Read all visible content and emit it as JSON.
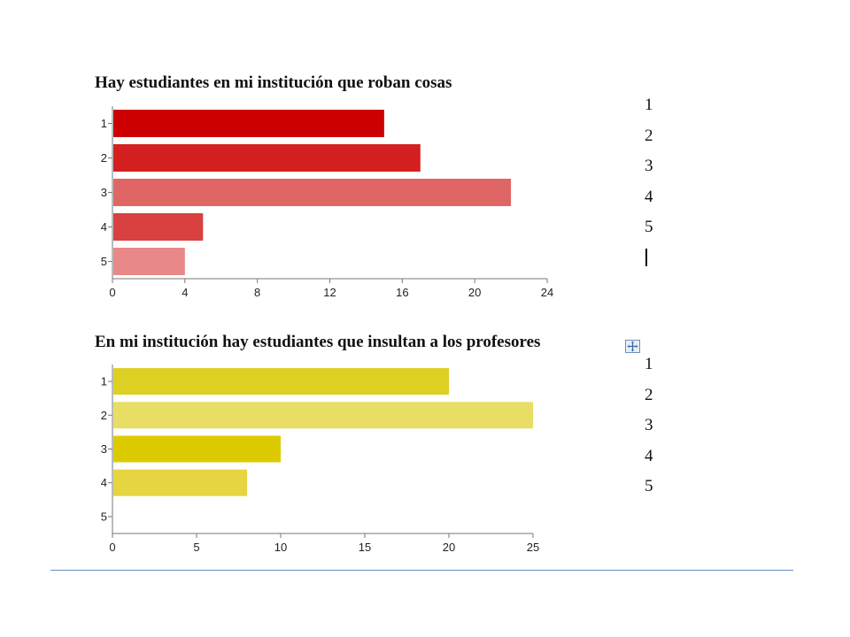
{
  "chart_data": [
    {
      "type": "bar",
      "orientation": "horizontal",
      "title": "Hay estudiantes en mi institución que roban cosas",
      "categories": [
        "1",
        "2",
        "3",
        "4",
        "5"
      ],
      "values": [
        15,
        17,
        22,
        5,
        4
      ],
      "colors": [
        "#cc0000",
        "#d42020",
        "#e06666",
        "#d94040",
        "#e88888"
      ],
      "xlim": [
        0,
        24
      ],
      "xticks": [
        0,
        4,
        8,
        12,
        16,
        20,
        24
      ],
      "grid": false,
      "legend_items": [
        "1",
        "2",
        "3",
        "4",
        "5"
      ]
    },
    {
      "type": "bar",
      "orientation": "horizontal",
      "title": "En mi institución hay estudiantes que insultan a los profesores",
      "categories": [
        "1",
        "2",
        "3",
        "4",
        "5"
      ],
      "values": [
        20,
        25,
        10,
        8,
        0
      ],
      "colors": [
        "#ddd022",
        "#e8de66",
        "#dccb00",
        "#e6d540",
        "#e6d540"
      ],
      "xlim": [
        0,
        25
      ],
      "xticks": [
        0,
        5,
        10,
        15,
        20,
        25
      ],
      "grid": false,
      "legend_items": [
        "1",
        "2",
        "3",
        "4",
        "5"
      ]
    }
  ],
  "icons": [
    "text-cursor",
    "move-anchor-icon"
  ]
}
